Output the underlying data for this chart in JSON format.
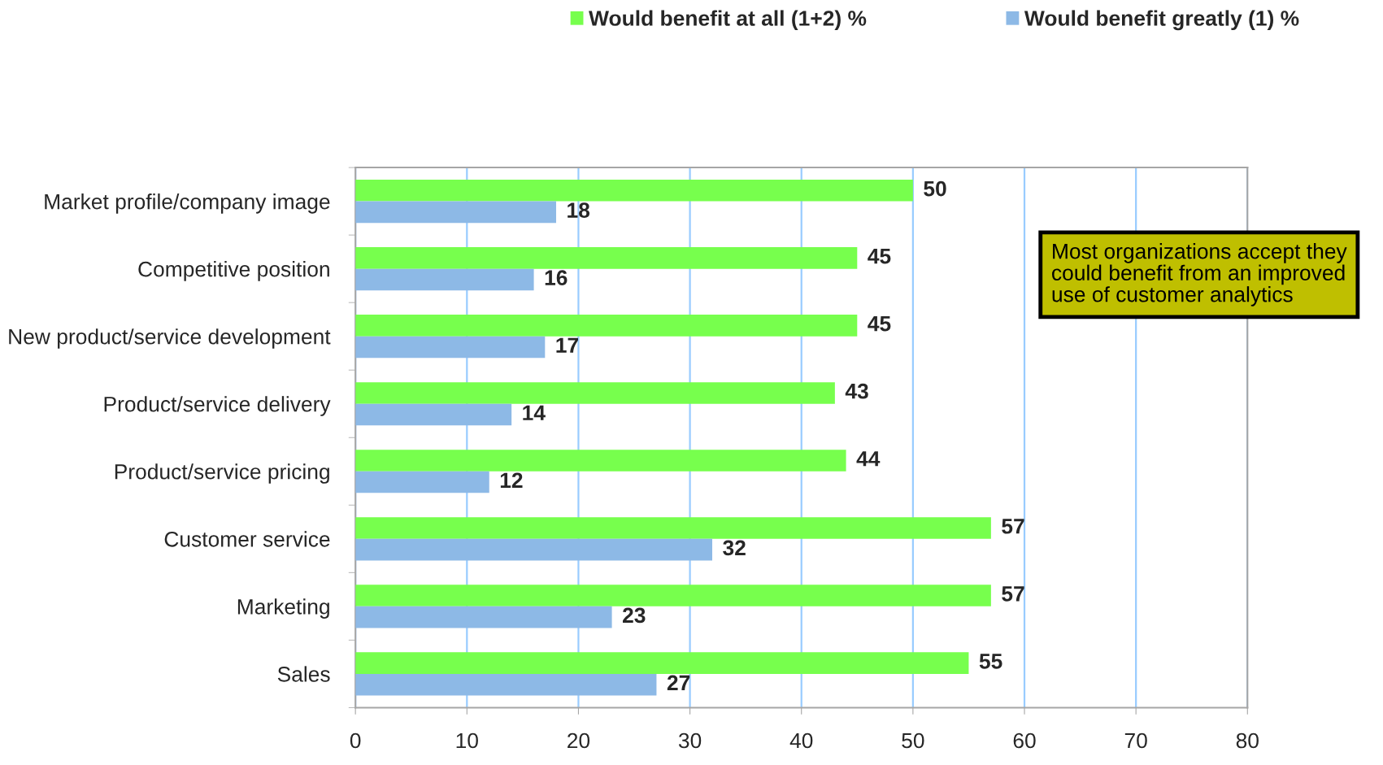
{
  "chart_data": {
    "type": "bar",
    "orientation": "horizontal",
    "categories": [
      "Market profile/company image",
      "Competitive position",
      "New product/service development",
      "Product/service delivery",
      "Product/service pricing",
      "Customer service",
      "Marketing",
      "Sales"
    ],
    "series": [
      {
        "name": "Would benefit at all (1+2) %",
        "color": "#77ff4d",
        "values": [
          50,
          45,
          45,
          43,
          44,
          57,
          57,
          55
        ]
      },
      {
        "name": "Would benefit greatly (1) %",
        "color": "#8db9e6",
        "values": [
          18,
          16,
          17,
          14,
          12,
          32,
          23,
          27
        ]
      }
    ],
    "xlim": [
      0,
      80
    ],
    "xticks": [
      0,
      10,
      20,
      30,
      40,
      50,
      60,
      70,
      80
    ],
    "grid": "x",
    "legend": "top",
    "data_labels": true,
    "annotations": [
      "Most organizations accept they\ncould benefit from an improved\nuse of customer analytics"
    ]
  }
}
